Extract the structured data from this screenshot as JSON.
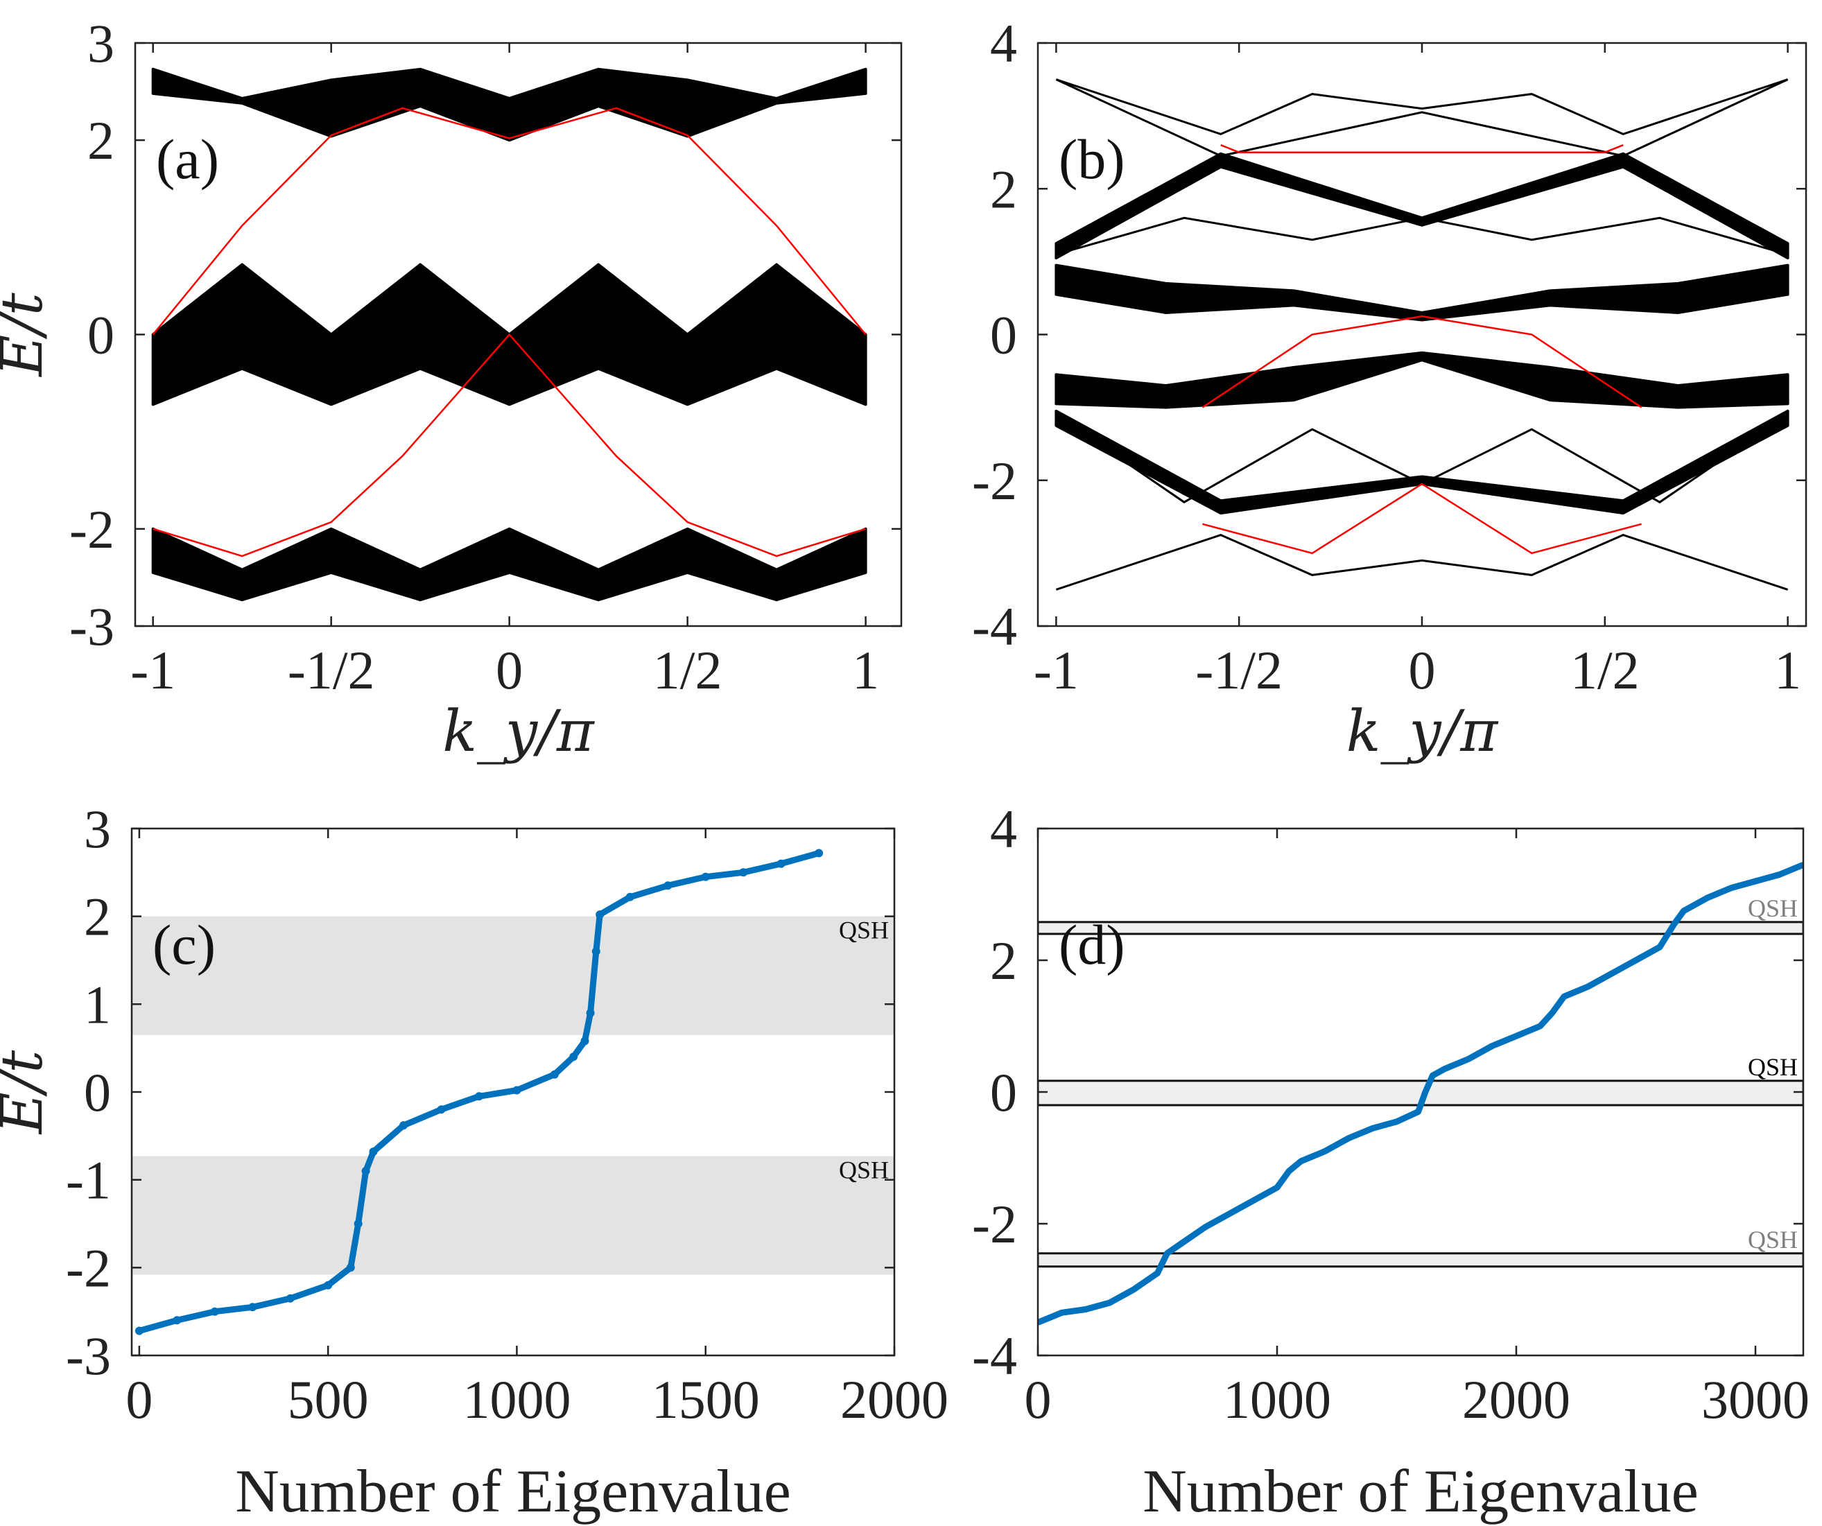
{
  "chart_data": [
    {
      "type": "line",
      "panel_label": "(a)",
      "xlabel": "k_y/π",
      "ylabel": "E/t",
      "xlim": [
        -1.05,
        1.1
      ],
      "ylim": [
        -3,
        3
      ],
      "xticks": [
        -1,
        -0.5,
        0,
        0.5,
        1
      ],
      "xtick_labels": [
        "-1",
        "-1/2",
        "0",
        "1/2",
        "1"
      ],
      "yticks": [
        -3,
        -2,
        0,
        2,
        3
      ],
      "ytick_labels": [
        "-3",
        "-2",
        "0",
        "2",
        "3"
      ],
      "bulk_band_color": "#000000",
      "edge_state_color": "#ff0000",
      "bands": [
        {
          "name": "upper bulk",
          "x": [
            -1,
            -0.75,
            -0.5,
            -0.25,
            0,
            0.25,
            0.5,
            0.75,
            1
          ],
          "lower": [
            2.48,
            2.38,
            2.04,
            2.35,
            2.0,
            2.35,
            2.04,
            2.38,
            2.48
          ],
          "upper": [
            2.73,
            2.43,
            2.62,
            2.73,
            2.43,
            2.73,
            2.62,
            2.43,
            2.73
          ]
        },
        {
          "name": "middle bulk",
          "x": [
            -1,
            -0.75,
            -0.5,
            -0.25,
            0,
            0.25,
            0.5,
            0.75,
            1
          ],
          "lower": [
            -0.72,
            -0.35,
            -0.72,
            -0.35,
            -0.72,
            -0.35,
            -0.72,
            -0.35,
            -0.72
          ],
          "upper": [
            0,
            0.72,
            0,
            0.72,
            0,
            0.72,
            0,
            0.72,
            0
          ]
        },
        {
          "name": "lower bulk",
          "x": [
            -1,
            -0.75,
            -0.5,
            -0.25,
            0,
            0.25,
            0.5,
            0.75,
            1
          ],
          "lower": [
            -2.45,
            -2.73,
            -2.45,
            -2.73,
            -2.45,
            -2.73,
            -2.45,
            -2.73,
            -2.45
          ],
          "upper": [
            -2.0,
            -2.42,
            -2.0,
            -2.42,
            -2.0,
            -2.42,
            -2.0,
            -2.42,
            -2.0
          ]
        }
      ],
      "edge_states": [
        {
          "name": "upper edge",
          "x": [
            -1,
            -0.75,
            -0.5,
            -0.3,
            0,
            0.3,
            0.5,
            0.75,
            1
          ],
          "y": [
            0,
            1.12,
            2.05,
            2.33,
            2.02,
            2.33,
            2.05,
            1.12,
            0
          ]
        },
        {
          "name": "lower edge",
          "x": [
            -1,
            -0.75,
            -0.5,
            -0.3,
            0,
            0.3,
            0.5,
            0.75,
            1
          ],
          "y": [
            -2.0,
            -2.28,
            -1.93,
            -1.25,
            0,
            -1.25,
            -1.93,
            -2.28,
            -2.0
          ]
        }
      ]
    },
    {
      "type": "line",
      "panel_label": "(b)",
      "xlabel": "k_y/π",
      "ylabel": "",
      "xlim": [
        -1.05,
        1.05
      ],
      "ylim": [
        -4,
        4
      ],
      "xticks": [
        -1,
        -0.5,
        0,
        0.5,
        1
      ],
      "xtick_labels": [
        "-1",
        "-1/2",
        "0",
        "1/2",
        "1"
      ],
      "yticks": [
        -4,
        -2,
        0,
        2,
        4
      ],
      "ytick_labels": [
        "-4",
        "-2",
        "0",
        "2",
        "4"
      ],
      "bulk_band_color": "#000000",
      "edge_state_color": "#ff0000",
      "bands": [
        {
          "name": "band 1",
          "x": [
            -1,
            -0.55,
            0,
            0.55,
            1
          ],
          "lower": [
            1.05,
            2.3,
            1.5,
            2.3,
            1.05
          ],
          "upper": [
            1.25,
            2.48,
            1.6,
            2.48,
            1.25
          ]
        },
        {
          "name": "band 2",
          "x": [
            -1,
            -0.7,
            -0.35,
            0,
            0.35,
            0.7,
            1
          ],
          "lower": [
            0.55,
            0.3,
            0.4,
            0.2,
            0.4,
            0.3,
            0.55
          ],
          "upper": [
            0.95,
            0.7,
            0.6,
            0.3,
            0.6,
            0.7,
            0.95
          ]
        },
        {
          "name": "band 3",
          "x": [
            -1,
            -0.7,
            -0.35,
            0,
            0.35,
            0.7,
            1
          ],
          "lower": [
            -0.95,
            -1.0,
            -0.9,
            -0.35,
            -0.9,
            -1.0,
            -0.95
          ],
          "upper": [
            -0.55,
            -0.7,
            -0.45,
            -0.25,
            -0.45,
            -0.7,
            -0.55
          ]
        },
        {
          "name": "band 4",
          "x": [
            -1,
            -0.55,
            0,
            0.55,
            1
          ],
          "lower": [
            -1.25,
            -2.45,
            -2.05,
            -2.45,
            -1.25
          ],
          "upper": [
            -1.05,
            -2.28,
            -1.95,
            -2.28,
            -1.05
          ]
        }
      ],
      "lines": [
        {
          "name": "top band",
          "x": [
            -1,
            -0.55,
            -0.3,
            0,
            0.3,
            0.55,
            1
          ],
          "y": [
            3.5,
            2.75,
            3.3,
            3.1,
            3.3,
            2.75,
            3.5
          ]
        },
        {
          "name": "line A",
          "x": [
            -1,
            -0.55,
            0,
            0.55,
            1
          ],
          "y": [
            3.5,
            2.45,
            3.05,
            2.45,
            3.5
          ]
        },
        {
          "name": "thin upper",
          "x": [
            -1,
            -0.65,
            -0.3,
            0,
            0.3,
            0.65,
            1
          ],
          "y": [
            1.1,
            1.6,
            1.3,
            1.6,
            1.3,
            1.6,
            1.1
          ]
        },
        {
          "name": "thin lower",
          "x": [
            -1,
            -0.65,
            -0.3,
            0,
            0.3,
            0.65,
            1
          ],
          "y": [
            -1.1,
            -2.3,
            -1.3,
            -2.05,
            -1.3,
            -2.3,
            -1.1
          ]
        },
        {
          "name": "bottom band",
          "x": [
            -1,
            -0.55,
            -0.3,
            0,
            0.3,
            0.55,
            1
          ],
          "y": [
            -3.5,
            -2.75,
            -3.3,
            -3.1,
            -3.3,
            -2.75,
            -3.5
          ]
        }
      ],
      "edge_states": [
        {
          "name": "center upper",
          "x": [
            -0.6,
            -0.3,
            0,
            0.3,
            0.6
          ],
          "y": [
            -1.0,
            0.0,
            0.25,
            0.0,
            -1.0
          ]
        },
        {
          "name": "lower crossing a",
          "x": [
            -0.6,
            -0.3,
            0,
            0.3,
            0.6
          ],
          "y": [
            -2.6,
            -3.0,
            -2.05,
            -3.0,
            -2.6
          ]
        },
        {
          "name": "upper corner",
          "x": [
            -0.55,
            -0.5,
            0.5,
            0.55
          ],
          "y": [
            2.6,
            2.5,
            2.5,
            2.6
          ]
        }
      ]
    },
    {
      "type": "scatter",
      "panel_label": "(c)",
      "xlabel": "Number of Eigenvalue",
      "ylabel": "E/t",
      "xlim": [
        -20,
        2000
      ],
      "ylim": [
        -3,
        3
      ],
      "xticks": [
        0,
        500,
        1000,
        1500,
        2000
      ],
      "xtick_labels": [
        "0",
        "500",
        "1000",
        "1500",
        "2000"
      ],
      "yticks": [
        -3,
        -2,
        -1,
        0,
        1,
        2,
        3
      ],
      "ytick_labels": [
        "-3",
        "-2",
        "-1",
        "0",
        "1",
        "2",
        "3"
      ],
      "series_color": "#0072bd",
      "shaded_regions": [
        {
          "label": "QSH",
          "ymin": 0.65,
          "ymax": 2.0
        },
        {
          "label": "QSH",
          "ymin": -2.08,
          "ymax": -0.73
        }
      ],
      "x": [
        0,
        100,
        200,
        300,
        400,
        500,
        560,
        580,
        600,
        620,
        700,
        800,
        900,
        1000,
        1100,
        1150,
        1180,
        1195,
        1210,
        1220,
        1300,
        1400,
        1500,
        1600,
        1700,
        1800
      ],
      "y": [
        -2.72,
        -2.6,
        -2.5,
        -2.45,
        -2.35,
        -2.2,
        -2.0,
        -1.5,
        -0.9,
        -0.68,
        -0.38,
        -0.2,
        -0.05,
        0.02,
        0.2,
        0.4,
        0.58,
        0.9,
        1.6,
        2.02,
        2.22,
        2.35,
        2.45,
        2.5,
        2.6,
        2.72
      ]
    },
    {
      "type": "line",
      "panel_label": "(d)",
      "xlabel": "Number of Eigenvalue",
      "ylabel": "",
      "xlim": [
        0,
        3200
      ],
      "ylim": [
        -4,
        4
      ],
      "xticks": [
        0,
        1000,
        2000,
        3000
      ],
      "xtick_labels": [
        "0",
        "1000",
        "2000",
        "3000"
      ],
      "yticks": [
        -4,
        -2,
        0,
        2,
        4
      ],
      "ytick_labels": [
        "-4",
        "-2",
        "0",
        "2",
        "4"
      ],
      "series_color": "#0072bd",
      "shaded_regions": [
        {
          "label": "QSH",
          "ymin": 2.4,
          "ymax": 2.58,
          "label_color": "#808080"
        },
        {
          "label": "QSH",
          "ymin": -0.2,
          "ymax": 0.17,
          "label_color": "#000000"
        },
        {
          "label": "QSH",
          "ymin": -2.65,
          "ymax": -2.45,
          "label_color": "#808080"
        }
      ],
      "x": [
        0,
        100,
        200,
        300,
        400,
        500,
        540,
        600,
        700,
        800,
        900,
        1000,
        1050,
        1100,
        1200,
        1300,
        1400,
        1500,
        1590,
        1620,
        1650,
        1700,
        1800,
        1900,
        2000,
        2100,
        2150,
        2200,
        2300,
        2400,
        2500,
        2600,
        2660,
        2700,
        2800,
        2900,
        3000,
        3100,
        3200
      ],
      "y": [
        -3.5,
        -3.35,
        -3.3,
        -3.2,
        -3.0,
        -2.75,
        -2.45,
        -2.3,
        -2.05,
        -1.85,
        -1.65,
        -1.45,
        -1.2,
        -1.05,
        -0.9,
        -0.7,
        -0.55,
        -0.45,
        -0.3,
        0.0,
        0.25,
        0.35,
        0.5,
        0.7,
        0.85,
        1.0,
        1.2,
        1.45,
        1.6,
        1.8,
        2.0,
        2.2,
        2.55,
        2.75,
        2.95,
        3.1,
        3.2,
        3.3,
        3.45
      ]
    }
  ]
}
